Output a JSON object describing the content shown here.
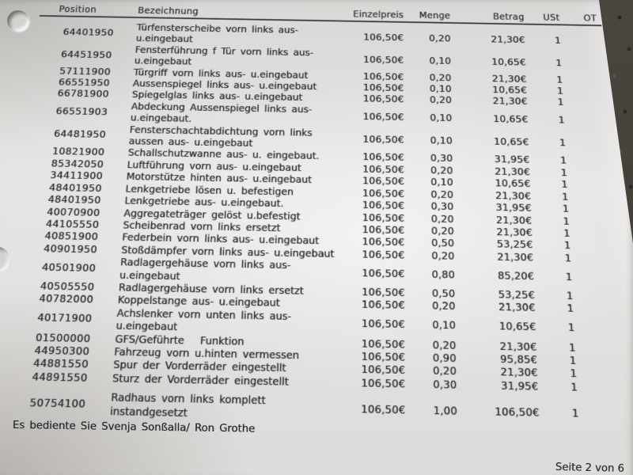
{
  "page": {
    "table": {
      "headers": {
        "position": "Position",
        "description": "Bezeichnung",
        "unit_price": "Einzelpreis",
        "qty": "Menge",
        "amount": "Betrag",
        "vat": "USt",
        "ot": "OT"
      },
      "rows": [
        {
          "position": "64401950",
          "description": "Türfensterscheibe vorn links aus-\nu.eingebaut",
          "unit_price": "106,50€",
          "qty": "0,20",
          "amount": "21,30€",
          "vat": "1",
          "ot": ""
        },
        {
          "position": "64451950",
          "description": "Fensterführung f Tür vorn links aus-\nu.eingebaut",
          "unit_price": "106,50€",
          "qty": "0,10",
          "amount": "10,65€",
          "vat": "1",
          "ot": ""
        },
        {
          "position": "57111900",
          "description": "Türgriff vorn links aus- u.eingebaut",
          "unit_price": "106,50€",
          "qty": "0,20",
          "amount": "21,30€",
          "vat": "1",
          "ot": ""
        },
        {
          "position": "66551950",
          "description": "Aussenspiegel links aus- u.eingebaut",
          "unit_price": "106,50€",
          "qty": "0,10",
          "amount": "10,65€",
          "vat": "1",
          "ot": ""
        },
        {
          "position": "66781900",
          "description": "Spiegelglas links aus- u.eingebaut",
          "unit_price": "106,50€",
          "qty": "0,20",
          "amount": "21,30€",
          "vat": "1",
          "ot": ""
        },
        {
          "position": "66551903",
          "description": "Abdeckung Aussenspiegel links aus-\nu.eingebaut.",
          "unit_price": "106,50€",
          "qty": "0,10",
          "amount": "10,65€",
          "vat": "1",
          "ot": ""
        },
        {
          "position": "64481950",
          "description": "Fensterschachtabdichtung vorn links\naussen aus- u.eingebaut",
          "unit_price": "106,50€",
          "qty": "0,10",
          "amount": "10,65€",
          "vat": "1",
          "ot": ""
        },
        {
          "position": "10821900",
          "description": "Schallschutzwanne aus- u. eingebaut.",
          "unit_price": "106,50€",
          "qty": "0,30",
          "amount": "31,95€",
          "vat": "1",
          "ot": ""
        },
        {
          "position": "85342050",
          "description": "Luftführung vorn aus- u.eingebaut",
          "unit_price": "106,50€",
          "qty": "0,20",
          "amount": "21,30€",
          "vat": "1",
          "ot": ""
        },
        {
          "position": "34411900",
          "description": "Motorstütze hinten aus- u.eingebaut",
          "unit_price": "106,50€",
          "qty": "0,10",
          "amount": "10,65€",
          "vat": "1",
          "ot": ""
        },
        {
          "position": "48401950",
          "description": "Lenkgetriebe lösen u. befestigen",
          "unit_price": "106,50€",
          "qty": "0,20",
          "amount": "21,30€",
          "vat": "1",
          "ot": ""
        },
        {
          "position": "48401950",
          "description": "Lenkgetriebe aus- u.eingebaut.",
          "unit_price": "106,50€",
          "qty": "0,30",
          "amount": "31,95€",
          "vat": "1",
          "ot": ""
        },
        {
          "position": "40070900",
          "description": "Aggregateträger gelöst u.befestigt",
          "unit_price": "106,50€",
          "qty": "0,20",
          "amount": "21,30€",
          "vat": "1",
          "ot": ""
        },
        {
          "position": "44105550",
          "description": "Scheibenrad vorn links ersetzt",
          "unit_price": "106,50€",
          "qty": "0,20",
          "amount": "21,30€",
          "vat": "1",
          "ot": ""
        },
        {
          "position": "40851900",
          "description": "Federbein vorn links aus- u.eingebaut",
          "unit_price": "106,50€",
          "qty": "0,50",
          "amount": "53,25€",
          "vat": "1",
          "ot": ""
        },
        {
          "position": "40901950",
          "description": "Stoßdämpfer vorn links aus- u.eingebaut",
          "unit_price": "106,50€",
          "qty": "0,20",
          "amount": "21,30€",
          "vat": "1",
          "ot": ""
        },
        {
          "position": "40501900",
          "description": "Radlagergehäuse vorn links aus-\nu.eingebaut",
          "unit_price": "106,50€",
          "qty": "0,80",
          "amount": "85,20€",
          "vat": "1",
          "ot": ""
        },
        {
          "position": "40505550",
          "description": "Radlagergehäuse vorn links ersetzt",
          "unit_price": "106,50€",
          "qty": "0,50",
          "amount": "53,25€",
          "vat": "1",
          "ot": ""
        },
        {
          "position": "40782000",
          "description": "Koppelstange aus- u.eingebaut",
          "unit_price": "106,50€",
          "qty": "0,20",
          "amount": "21,30€",
          "vat": "1",
          "ot": ""
        },
        {
          "position": "40171900",
          "description": "Achslenker vorn unten links aus-\nu.eingebaut",
          "unit_price": "106,50€",
          "qty": "0,10",
          "amount": "10,65€",
          "vat": "1",
          "ot": ""
        },
        {
          "position": "01500000",
          "description": "GFS/Geführte   Funktion",
          "unit_price": "106,50€",
          "qty": "0,20",
          "amount": "21,30€",
          "vat": "1",
          "ot": ""
        },
        {
          "position": "44950300",
          "description": "Fahrzeug vorn u.hinten vermessen",
          "unit_price": "106,50€",
          "qty": "0,90",
          "amount": "95,85€",
          "vat": "1",
          "ot": ""
        },
        {
          "position": "44881550",
          "description": "Spur der Vorderräder eingestellt",
          "unit_price": "106,50€",
          "qty": "0,20",
          "amount": "21,30€",
          "vat": "1",
          "ot": ""
        },
        {
          "position": "44891550",
          "description": "Sturz der Vorderräder eingestellt",
          "unit_price": "106,50€",
          "qty": "0,30",
          "amount": "31,95€",
          "vat": "1",
          "ot": ""
        },
        {
          "position": "50754100",
          "description": "Radhaus vorn links komplett\ninstandgesetzt",
          "unit_price": "106,50€",
          "qty": "1,00",
          "amount": "106,50€",
          "vat": "1",
          "ot": ""
        }
      ]
    },
    "served_by": "Es bediente Sie Svenja Sonßalla/ Ron Grothe",
    "page_indicator": "Seite 2 von 6",
    "colors": {
      "paper": "#e7e5e3",
      "ink": "#2b2b2d",
      "desk": "#474239"
    }
  }
}
